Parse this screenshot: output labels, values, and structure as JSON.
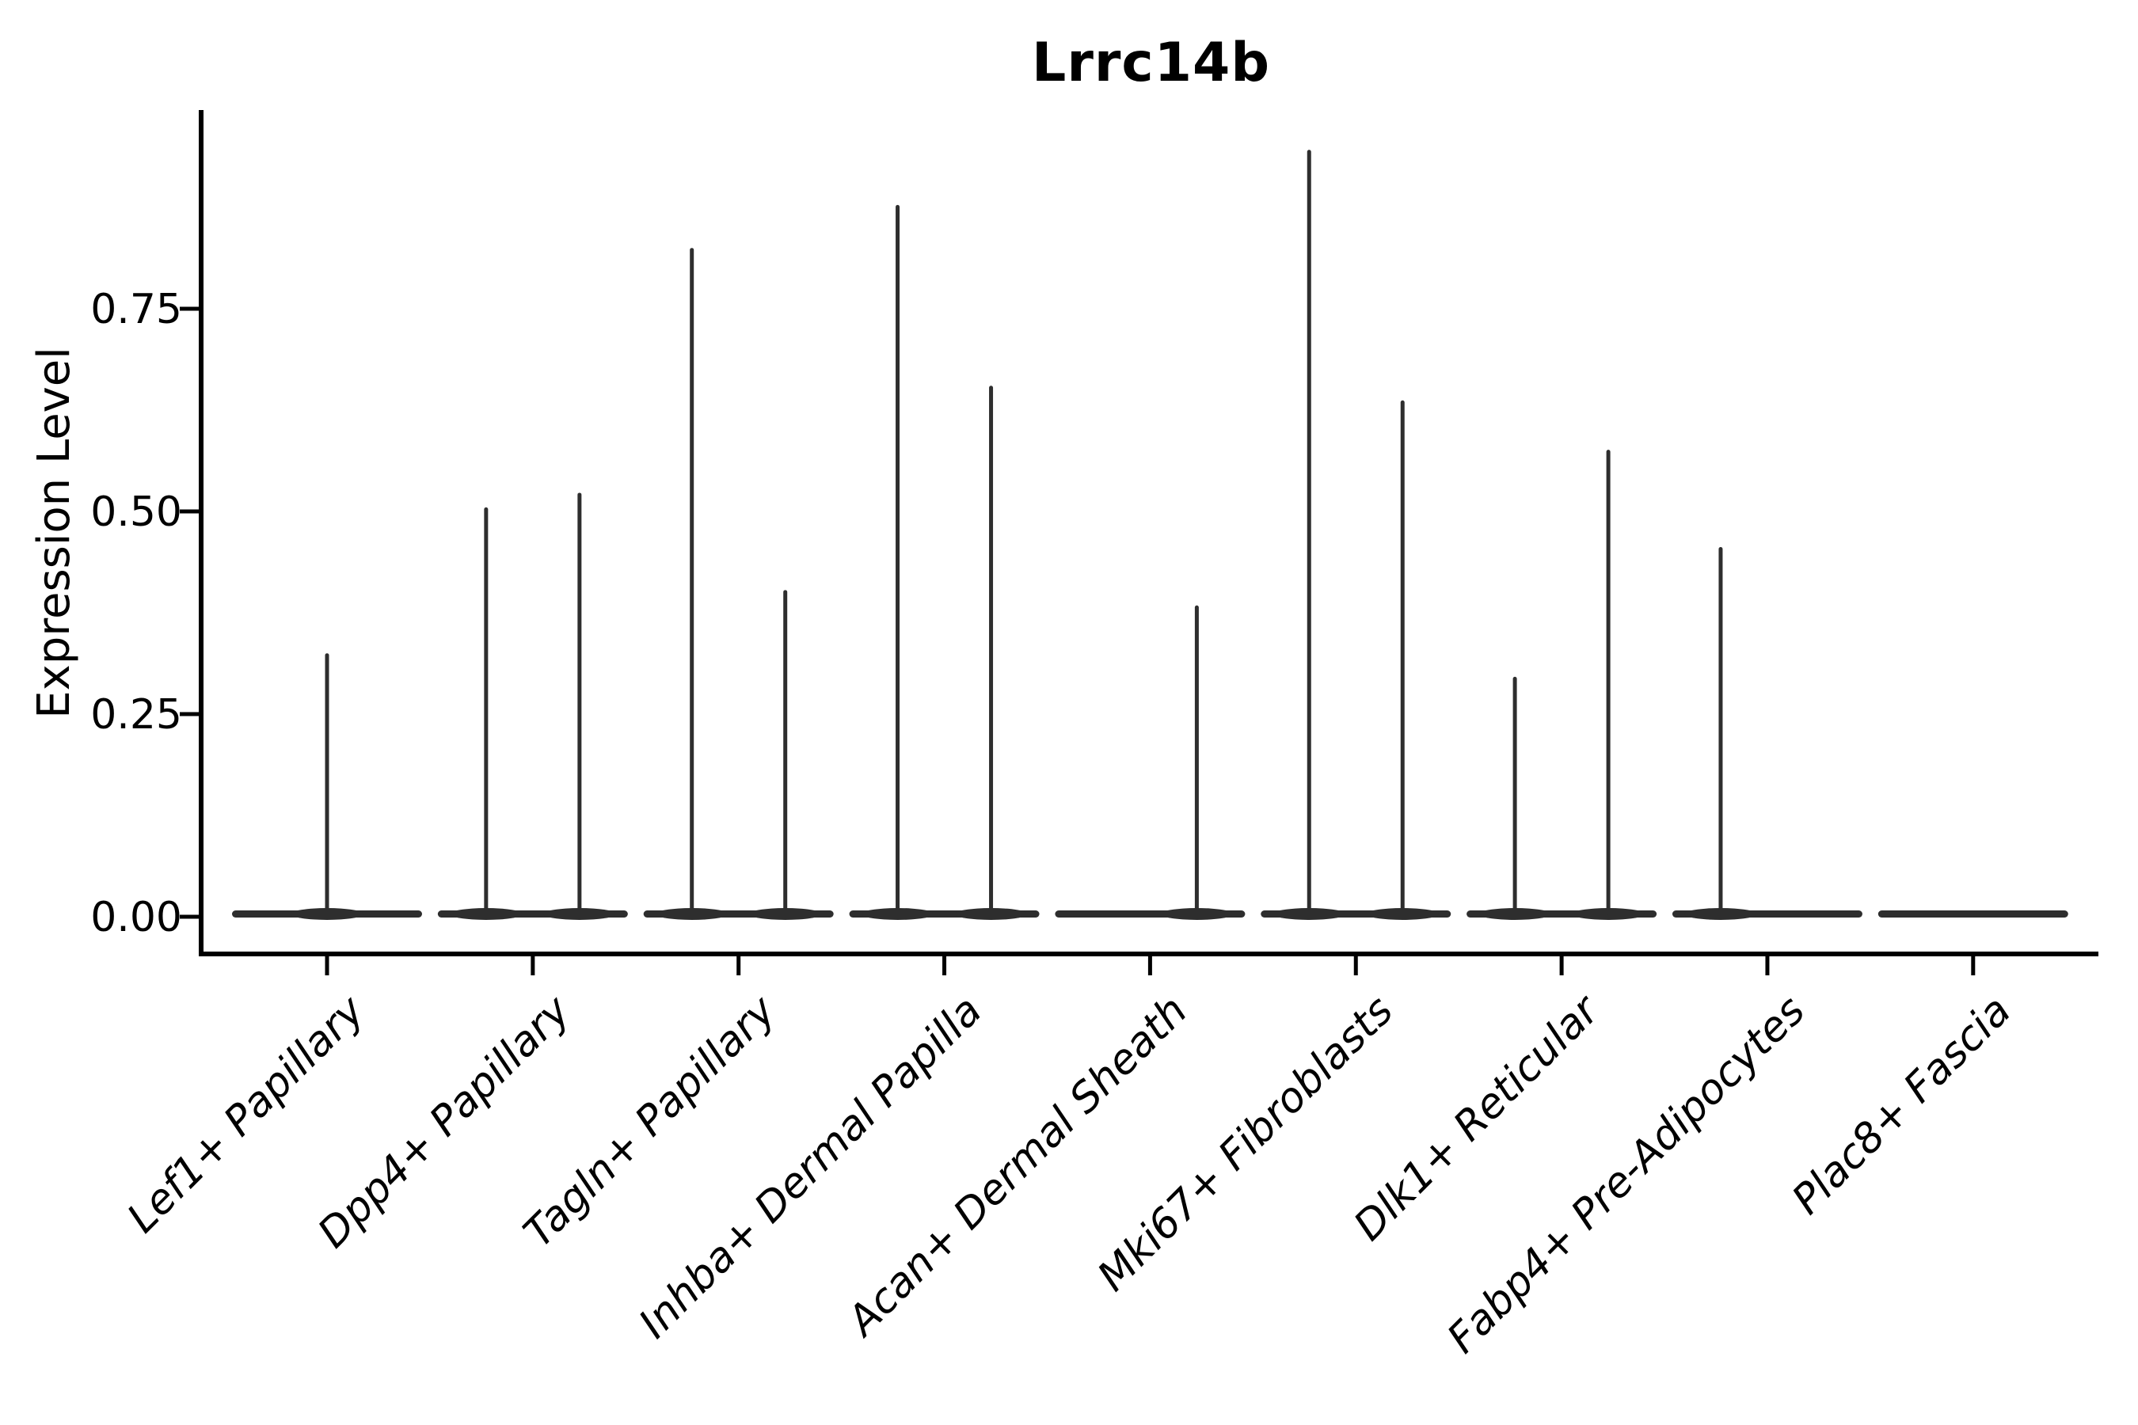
{
  "chart_data": {
    "type": "violin",
    "title": "Lrrc14b",
    "xlabel": "",
    "ylabel": "Expression Level",
    "ylim": [
      -0.05,
      1.0
    ],
    "grid": false,
    "legend": "none",
    "ytick_labels": [
      "0.00",
      "0.25",
      "0.50",
      "0.75"
    ],
    "ytick_values": [
      0,
      0.25,
      0.5,
      0.75
    ],
    "categories": [
      "Lef1+ Papillary",
      "Dpp4+ Papillary",
      "Tagln+ Papillary",
      "Inhba+ Dermal Papilla",
      "Acan+ Dermal Sheath",
      "Mki67+ Fibroblasts",
      "Dlk1+ Reticular",
      "Fabp4+ Pre-Adipocytes",
      "Plac8+ Fascia"
    ],
    "violins": [
      {
        "category": "Lef1+ Papillary",
        "baseline_value": 0,
        "spikes": [
          {
            "position": "center",
            "max_expression": 0.325
          }
        ]
      },
      {
        "category": "Dpp4+ Papillary",
        "baseline_value": 0,
        "spikes": [
          {
            "position": "left",
            "max_expression": 0.505
          },
          {
            "position": "right",
            "max_expression": 0.523
          }
        ]
      },
      {
        "category": "Tagln+ Papillary",
        "baseline_value": 0,
        "spikes": [
          {
            "position": "left",
            "max_expression": 0.825
          },
          {
            "position": "right",
            "max_expression": 0.403
          }
        ]
      },
      {
        "category": "Inhba+ Dermal Papilla",
        "baseline_value": 0,
        "spikes": [
          {
            "position": "left",
            "max_expression": 0.878
          },
          {
            "position": "right",
            "max_expression": 0.655
          }
        ]
      },
      {
        "category": "Acan+ Dermal Sheath",
        "baseline_value": 0,
        "spikes": [
          {
            "position": "right",
            "max_expression": 0.384
          }
        ]
      },
      {
        "category": "Mki67+ Fibroblasts",
        "baseline_value": 0,
        "spikes": [
          {
            "position": "left",
            "max_expression": 0.946
          },
          {
            "position": "right",
            "max_expression": 0.637
          }
        ]
      },
      {
        "category": "Dlk1+ Reticular",
        "baseline_value": 0,
        "spikes": [
          {
            "position": "left",
            "max_expression": 0.296
          },
          {
            "position": "right",
            "max_expression": 0.576
          }
        ]
      },
      {
        "category": "Fabp4+ Pre-Adipocytes",
        "baseline_value": 0,
        "spikes": [
          {
            "position": "left",
            "max_expression": 0.456
          }
        ]
      },
      {
        "category": "Plac8+ Fascia",
        "baseline_value": 0,
        "spikes": []
      }
    ],
    "colors": {
      "violin": "#2e2e2e",
      "axis": "#000000",
      "text": "#000000",
      "background": "#ffffff"
    }
  }
}
